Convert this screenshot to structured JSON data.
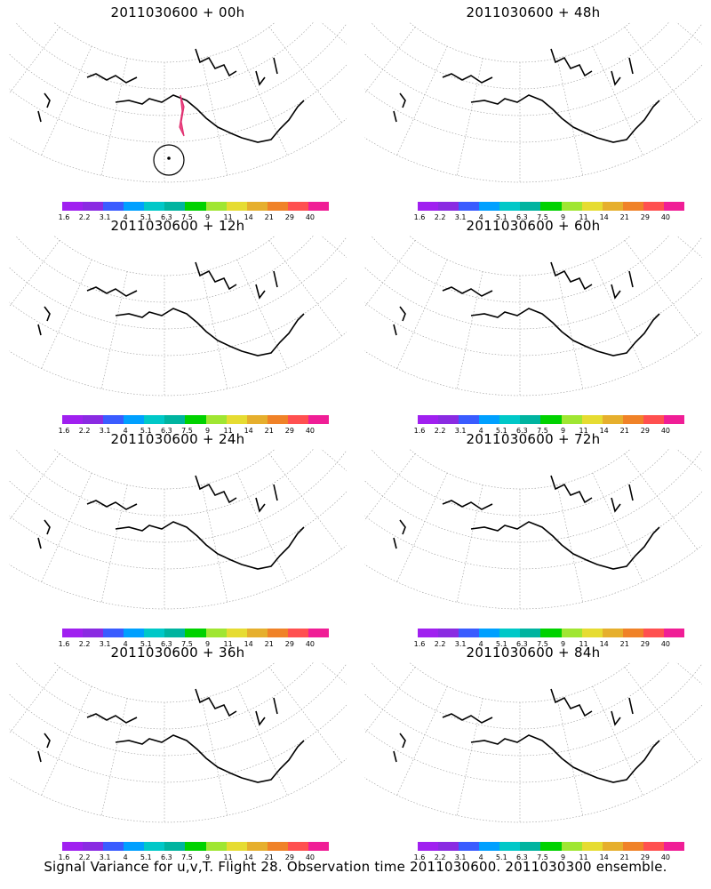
{
  "colorbar": {
    "colors": [
      "#a020f0",
      "#8a2be2",
      "#3a5cff",
      "#00a0ff",
      "#00c8c8",
      "#00b4a0",
      "#00d200",
      "#a0e632",
      "#e6dc32",
      "#e6af2d",
      "#f08228",
      "#ff5050",
      "#f01e96"
    ],
    "labels": [
      "1.6",
      "2.2",
      "3.1",
      "4",
      "5.1",
      "6.3",
      "7.5",
      "9",
      "11",
      "14",
      "21",
      "29",
      "40"
    ]
  },
  "panels": [
    {
      "title": "2011030600 + 00h",
      "level": 0,
      "marker": true
    },
    {
      "title": "2011030600 + 48h",
      "level": 4
    },
    {
      "title": "2011030600 + 12h",
      "level": 1
    },
    {
      "title": "2011030600 + 60h",
      "level": 5
    },
    {
      "title": "2011030600 + 24h",
      "level": 2
    },
    {
      "title": "2011030600 + 72h",
      "level": 6
    },
    {
      "title": "2011030600 + 36h",
      "level": 3
    },
    {
      "title": "2011030600 + 84h",
      "level": 7
    }
  ],
  "footer": "Signal Variance for u,v,T. Flight 28. Observation time 2011030600. 2011030300 ensemble."
}
